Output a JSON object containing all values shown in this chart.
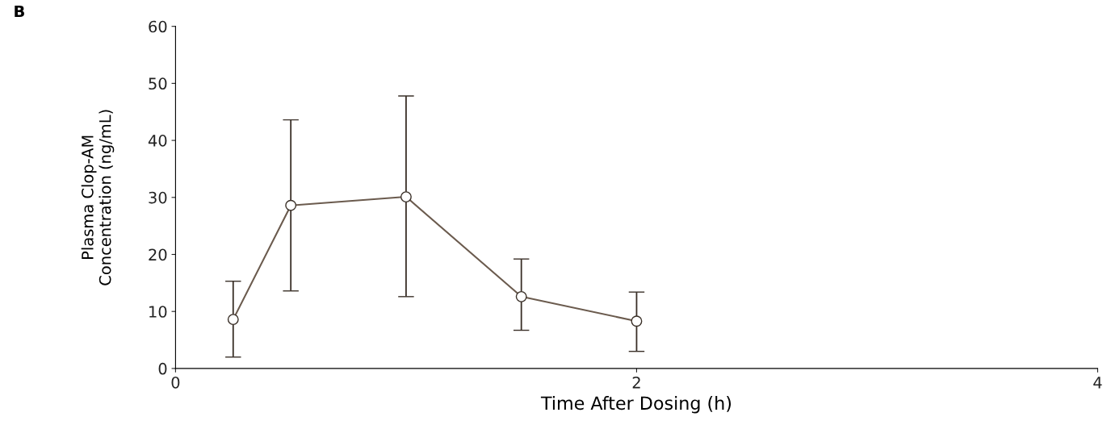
{
  "chart_data": {
    "type": "line",
    "annotations": [
      "B"
    ],
    "xlabel": "Time After Dosing (h)",
    "ylabel": "Plasma Clop-AM\nConcentration (ng/mL)",
    "x": [
      0.25,
      0.5,
      1.0,
      1.5,
      2.0
    ],
    "series": [
      {
        "color": "#6b5b4e",
        "values": [
          8.6,
          28.6,
          30.1,
          12.6,
          8.3
        ],
        "errors": [
          [
            2.0,
            15.3
          ],
          [
            13.6,
            43.6
          ],
          [
            12.6,
            47.8
          ],
          [
            6.7,
            19.2
          ],
          [
            3.0,
            13.4
          ]
        ]
      }
    ],
    "xlim": [
      0,
      4
    ],
    "xticks": [
      0,
      2,
      4
    ],
    "ylim": [
      0,
      60
    ],
    "yticks": [
      0,
      10,
      20,
      30,
      40,
      50,
      60
    ],
    "grid": false,
    "legend": false,
    "marker": "circle",
    "line_style": "solid"
  }
}
